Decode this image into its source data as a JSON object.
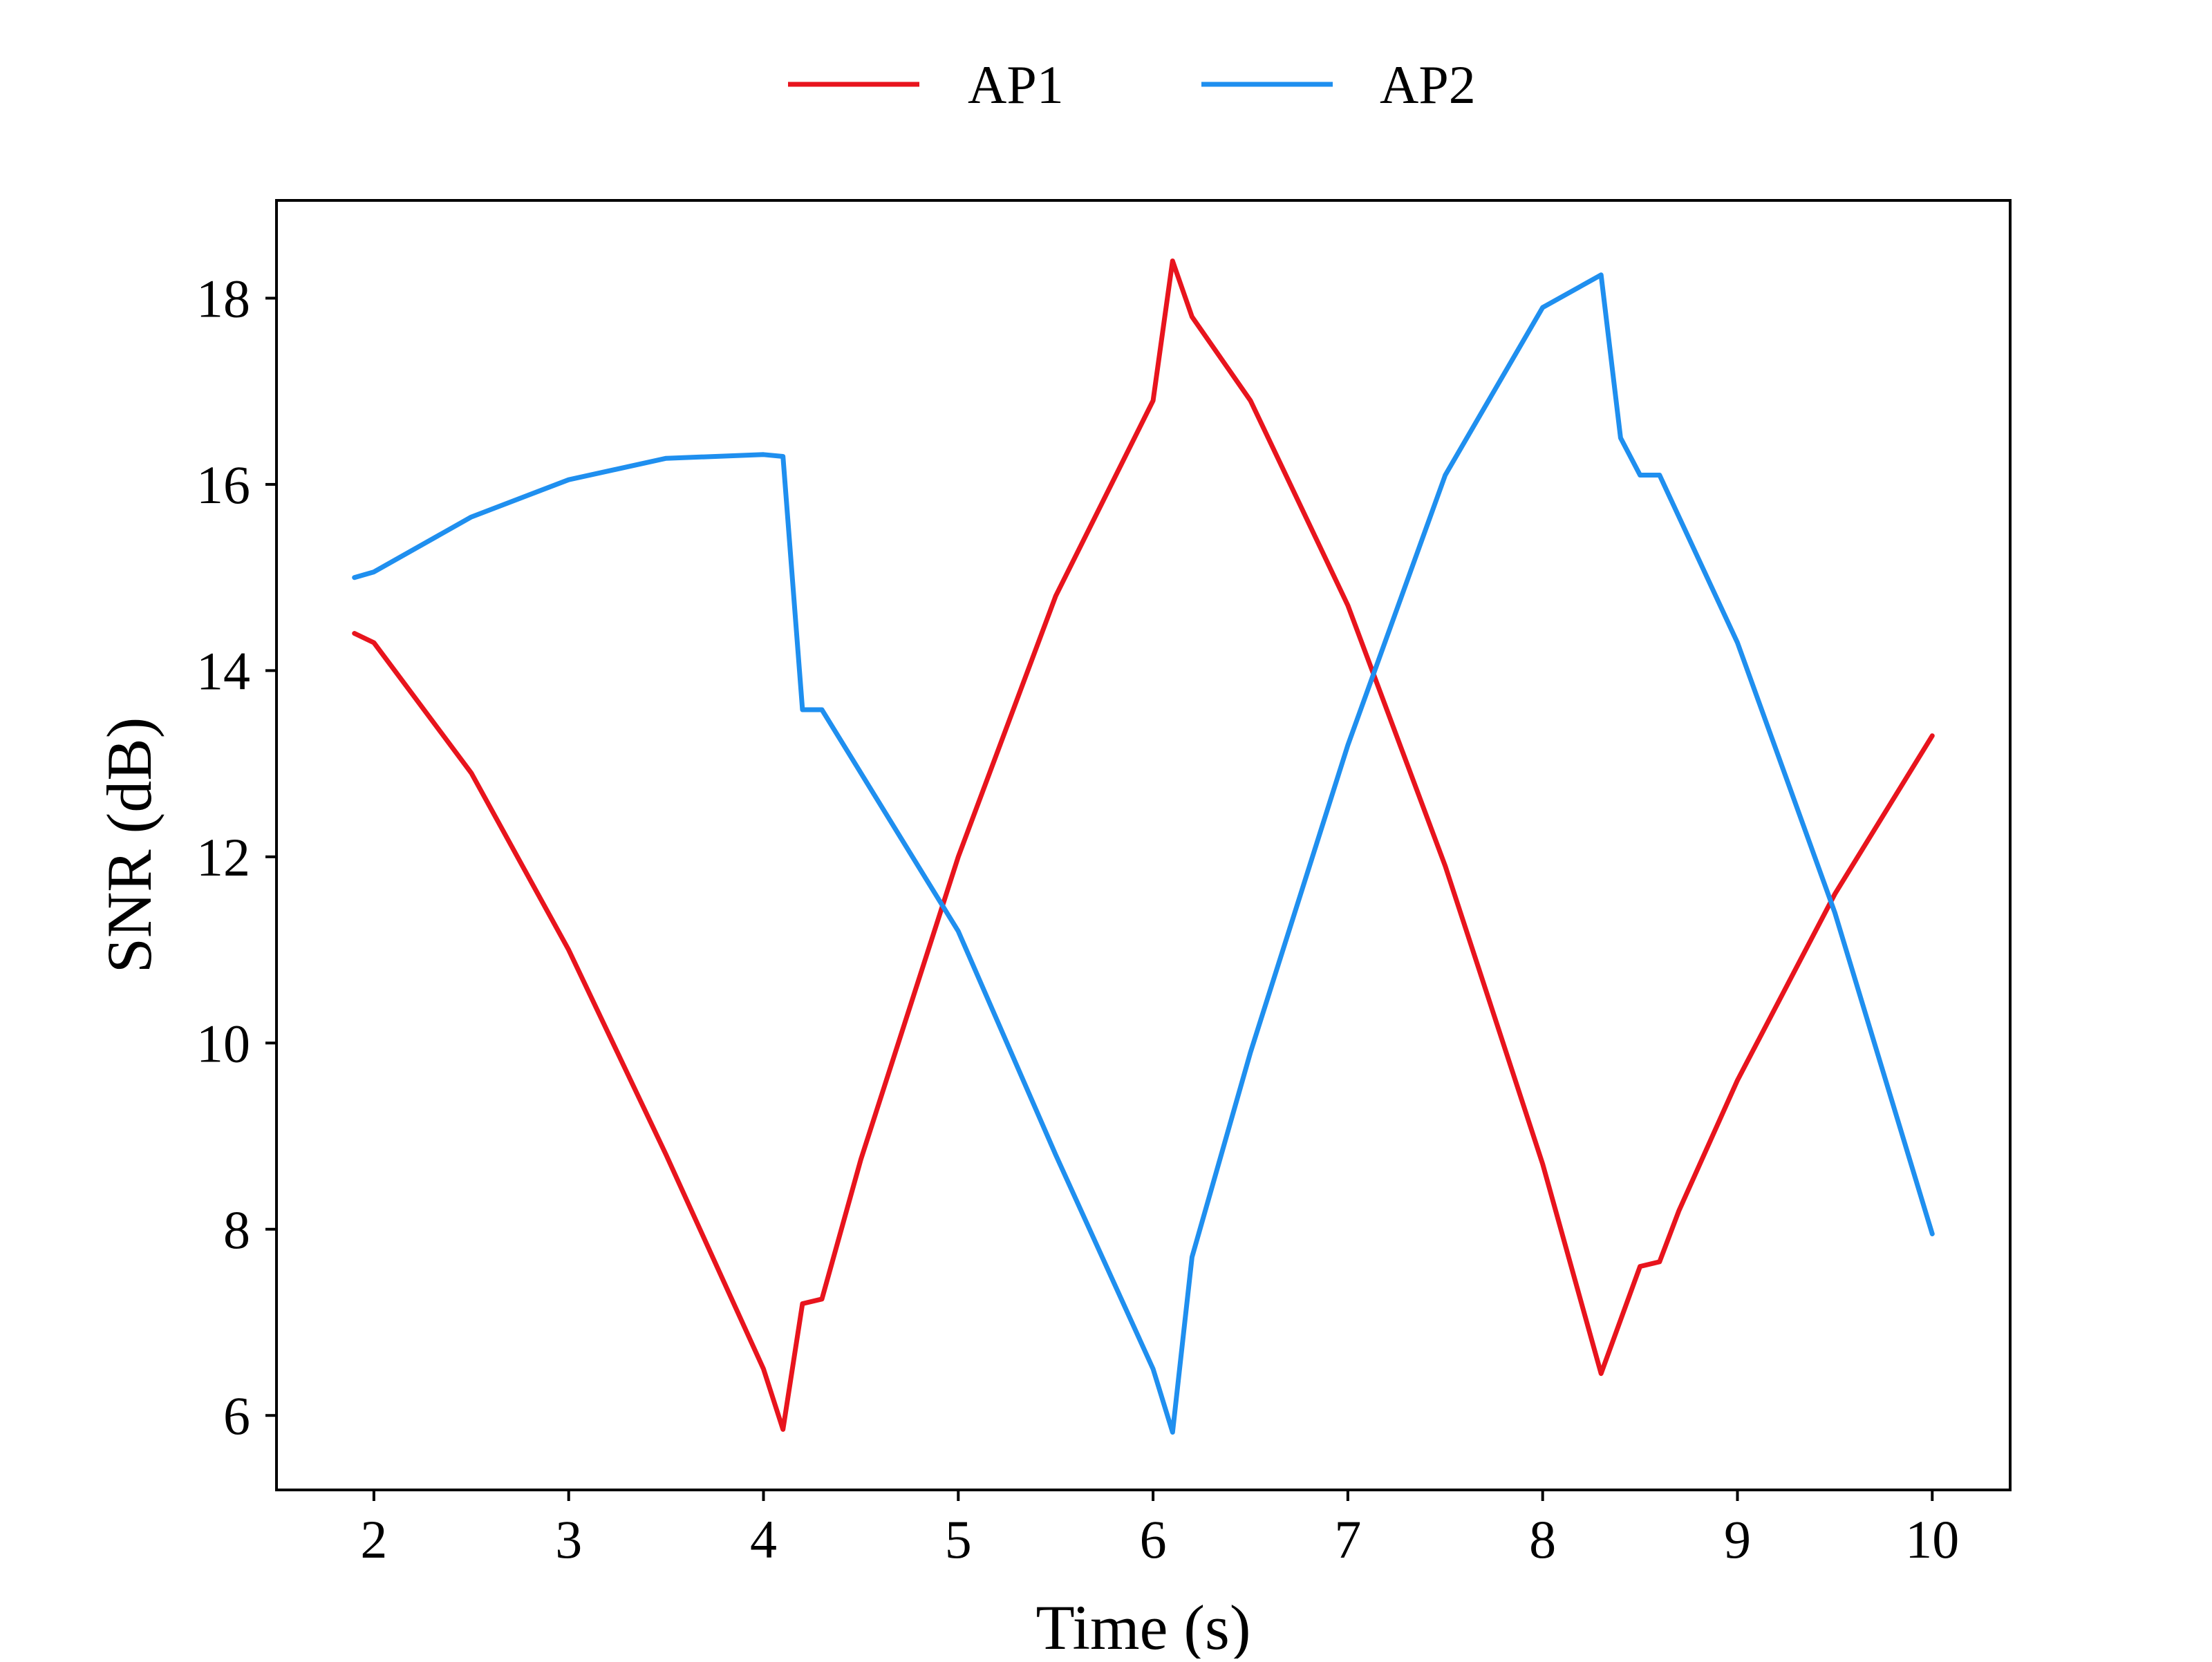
{
  "chart_data": {
    "type": "line",
    "title": "",
    "xlabel": "Time (s)",
    "ylabel": "SNR (dB)",
    "xlim": [
      1.5,
      10.4
    ],
    "ylim": [
      5.2,
      19.05
    ],
    "xticks": [
      2,
      3,
      4,
      5,
      6,
      7,
      8,
      9,
      10
    ],
    "yticks": [
      6,
      8,
      10,
      12,
      14,
      16,
      18
    ],
    "xtick_labels": [
      "2",
      "3",
      "4",
      "5",
      "6",
      "7",
      "8",
      "9",
      "10"
    ],
    "ytick_labels": [
      "6",
      "8",
      "10",
      "12",
      "14",
      "16",
      "18"
    ],
    "grid": false,
    "legend": {
      "position": "top-center",
      "entries": [
        "AP1",
        "AP2"
      ]
    },
    "series": [
      {
        "name": "AP1",
        "color": "#e8141d",
        "x": [
          1.9,
          2.0,
          2.5,
          3.0,
          3.5,
          4.0,
          4.1,
          4.2,
          4.3,
          4.5,
          5.0,
          5.5,
          6.0,
          6.1,
          6.2,
          6.5,
          7.0,
          7.5,
          8.0,
          8.3,
          8.5,
          8.6,
          8.7,
          9.0,
          9.5,
          10.0
        ],
        "y": [
          14.4,
          14.3,
          12.9,
          11.0,
          8.8,
          6.5,
          5.85,
          7.2,
          7.25,
          8.75,
          12.0,
          14.8,
          16.9,
          18.4,
          17.8,
          16.9,
          14.7,
          11.9,
          8.7,
          6.45,
          7.6,
          7.65,
          8.2,
          9.6,
          11.6,
          13.3
        ]
      },
      {
        "name": "AP2",
        "color": "#1f8fef",
        "x": [
          1.9,
          2.0,
          2.5,
          3.0,
          3.5,
          4.0,
          4.1,
          4.2,
          4.3,
          4.5,
          5.0,
          5.5,
          6.0,
          6.1,
          6.2,
          6.5,
          7.0,
          7.5,
          8.0,
          8.3,
          8.4,
          8.5,
          8.6,
          9.0,
          9.5,
          10.0
        ],
        "y": [
          15.0,
          15.06,
          15.65,
          16.05,
          16.28,
          16.32,
          16.3,
          13.58,
          13.58,
          12.9,
          11.2,
          8.8,
          6.5,
          5.82,
          7.7,
          9.9,
          13.2,
          16.1,
          17.9,
          18.25,
          16.5,
          16.1,
          16.1,
          14.3,
          11.4,
          7.95
        ]
      }
    ]
  }
}
